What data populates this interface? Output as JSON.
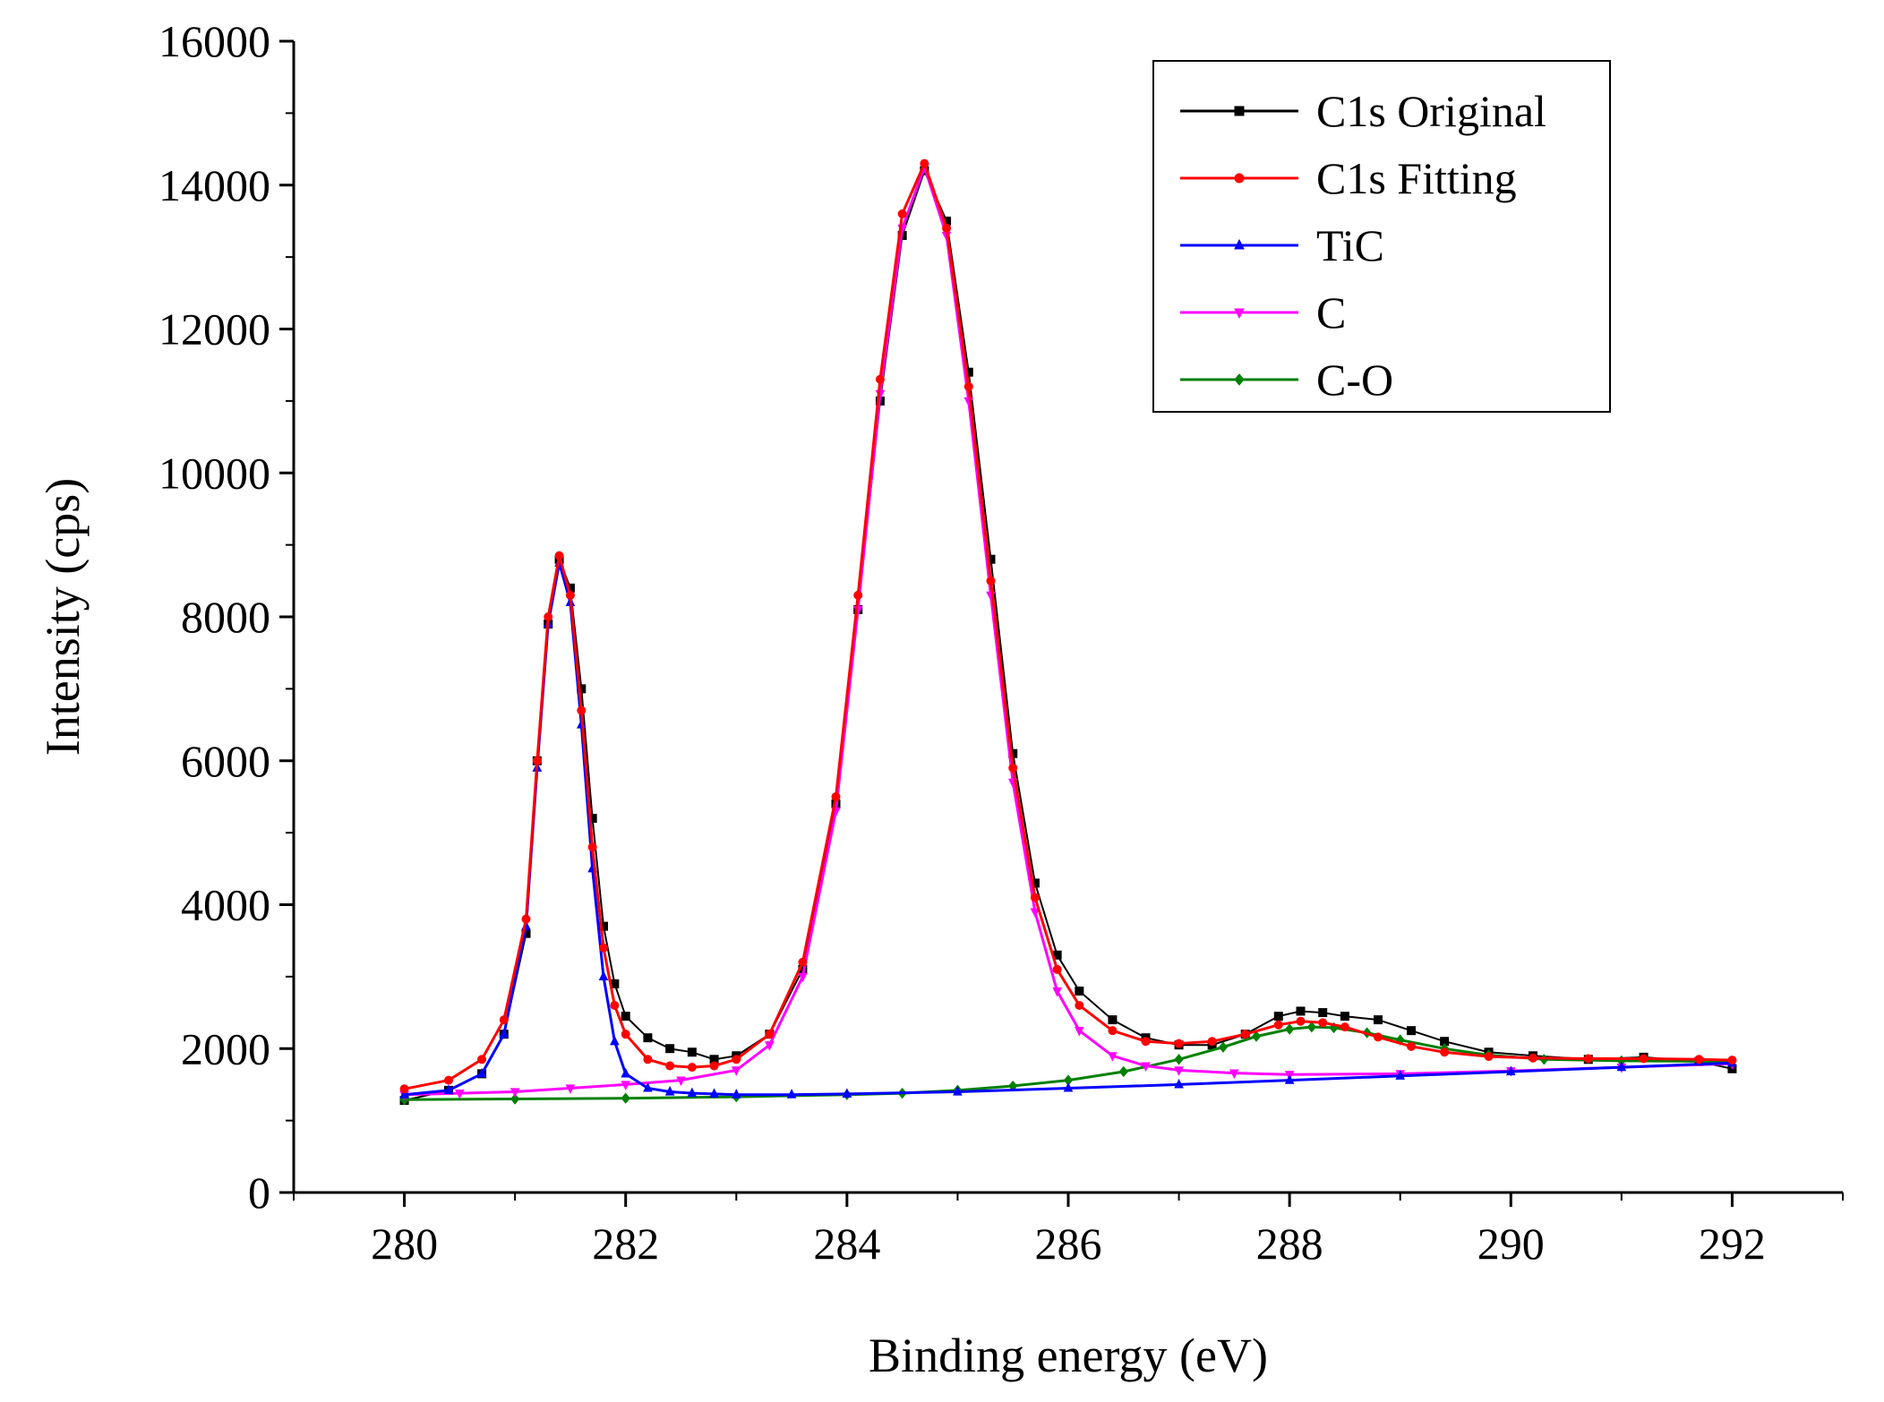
{
  "chart_data": {
    "type": "line",
    "title": "",
    "xlabel": "Binding energy (eV)",
    "ylabel": "Intensity (cps)",
    "xlim": [
      279,
      293
    ],
    "ylim": [
      0,
      16000
    ],
    "x_ticks": [
      280,
      282,
      284,
      286,
      288,
      290,
      292
    ],
    "x_tick_labels": [
      "280",
      "282",
      "284",
      "286",
      "288",
      "290",
      "292"
    ],
    "y_ticks": [
      0,
      2000,
      4000,
      6000,
      8000,
      10000,
      12000,
      14000,
      16000
    ],
    "y_tick_labels": [
      "0",
      "2000",
      "4000",
      "6000",
      "8000",
      "10000",
      "12000",
      "14000",
      "16000"
    ],
    "legend_position": "top-right",
    "grid": false,
    "series": [
      {
        "name": "C1s Original",
        "color": "#000000",
        "marker": "square",
        "x": [
          280.0,
          280.4,
          280.7,
          280.9,
          281.1,
          281.2,
          281.3,
          281.4,
          281.5,
          281.6,
          281.7,
          281.8,
          281.9,
          282.0,
          282.2,
          282.4,
          282.6,
          282.8,
          283.0,
          283.3,
          283.6,
          283.9,
          284.1,
          284.3,
          284.5,
          284.7,
          284.9,
          285.1,
          285.3,
          285.5,
          285.7,
          285.9,
          286.1,
          286.4,
          286.7,
          287.0,
          287.3,
          287.6,
          287.9,
          288.1,
          288.3,
          288.5,
          288.8,
          289.1,
          289.4,
          289.8,
          290.2,
          290.7,
          291.2,
          291.7,
          292.0
        ],
        "values": [
          1280,
          1420,
          1650,
          2200,
          3600,
          6000,
          7900,
          8800,
          8400,
          7000,
          5200,
          3700,
          2900,
          2450,
          2150,
          2000,
          1950,
          1850,
          1900,
          2200,
          3100,
          5400,
          8100,
          11000,
          13300,
          14200,
          13500,
          11400,
          8800,
          6100,
          4300,
          3300,
          2800,
          2400,
          2150,
          2050,
          2050,
          2200,
          2450,
          2520,
          2500,
          2450,
          2400,
          2250,
          2100,
          1950,
          1900,
          1850,
          1880,
          1820,
          1720
        ]
      },
      {
        "name": "C1s Fitting",
        "color": "#ff0000",
        "marker": "circle",
        "x": [
          280.0,
          280.4,
          280.7,
          280.9,
          281.1,
          281.2,
          281.3,
          281.4,
          281.5,
          281.6,
          281.7,
          281.8,
          281.9,
          282.0,
          282.2,
          282.4,
          282.6,
          282.8,
          283.0,
          283.3,
          283.6,
          283.9,
          284.1,
          284.3,
          284.5,
          284.7,
          284.9,
          285.1,
          285.3,
          285.5,
          285.7,
          285.9,
          286.1,
          286.4,
          286.7,
          287.0,
          287.3,
          287.6,
          287.9,
          288.1,
          288.3,
          288.5,
          288.8,
          289.1,
          289.4,
          289.8,
          290.2,
          290.7,
          291.2,
          291.7,
          292.0
        ],
        "values": [
          1440,
          1560,
          1850,
          2400,
          3800,
          6000,
          8000,
          8850,
          8300,
          6700,
          4800,
          3400,
          2600,
          2200,
          1850,
          1760,
          1740,
          1760,
          1850,
          2200,
          3200,
          5500,
          8300,
          11300,
          13600,
          14300,
          13400,
          11200,
          8500,
          5900,
          4100,
          3100,
          2600,
          2250,
          2100,
          2070,
          2100,
          2200,
          2330,
          2380,
          2360,
          2300,
          2160,
          2030,
          1950,
          1890,
          1870,
          1860,
          1860,
          1850,
          1840
        ]
      },
      {
        "name": "TiC",
        "color": "#0000ff",
        "marker": "triangle-up",
        "x": [
          280.0,
          280.4,
          280.7,
          280.9,
          281.1,
          281.2,
          281.3,
          281.4,
          281.5,
          281.6,
          281.7,
          281.8,
          281.9,
          282.0,
          282.2,
          282.4,
          282.6,
          282.8,
          283.0,
          283.5,
          284.0,
          285.0,
          286.0,
          287.0,
          288.0,
          289.0,
          290.0,
          291.0,
          292.0
        ],
        "values": [
          1360,
          1420,
          1650,
          2200,
          3700,
          5900,
          7900,
          8750,
          8200,
          6500,
          4500,
          3000,
          2100,
          1650,
          1450,
          1400,
          1380,
          1370,
          1360,
          1360,
          1370,
          1400,
          1450,
          1500,
          1560,
          1620,
          1680,
          1740,
          1800
        ]
      },
      {
        "name": "C",
        "color": "#ff00ff",
        "marker": "triangle-down",
        "x": [
          280.0,
          280.5,
          281.0,
          281.5,
          282.0,
          282.5,
          283.0,
          283.3,
          283.6,
          283.9,
          284.1,
          284.3,
          284.5,
          284.7,
          284.9,
          285.1,
          285.3,
          285.5,
          285.7,
          285.9,
          286.1,
          286.4,
          286.7,
          287.0,
          287.5,
          288.0,
          289.0,
          290.0,
          291.0,
          292.0
        ],
        "values": [
          1360,
          1380,
          1400,
          1450,
          1500,
          1560,
          1700,
          2050,
          3000,
          5300,
          8100,
          11100,
          13400,
          14250,
          13300,
          11000,
          8300,
          5700,
          3900,
          2800,
          2250,
          1900,
          1760,
          1700,
          1660,
          1640,
          1650,
          1690,
          1740,
          1790
        ]
      },
      {
        "name": "C-O",
        "color": "#008000",
        "marker": "diamond",
        "x": [
          280.0,
          281.0,
          282.0,
          283.0,
          284.0,
          284.5,
          285.0,
          285.5,
          286.0,
          286.5,
          287.0,
          287.4,
          287.7,
          288.0,
          288.2,
          288.4,
          288.7,
          289.0,
          289.4,
          289.8,
          290.3,
          291.0,
          292.0
        ],
        "values": [
          1290,
          1300,
          1310,
          1330,
          1360,
          1380,
          1420,
          1480,
          1560,
          1680,
          1850,
          2020,
          2170,
          2270,
          2300,
          2290,
          2220,
          2120,
          2000,
          1910,
          1850,
          1830,
          1820
        ]
      }
    ]
  }
}
